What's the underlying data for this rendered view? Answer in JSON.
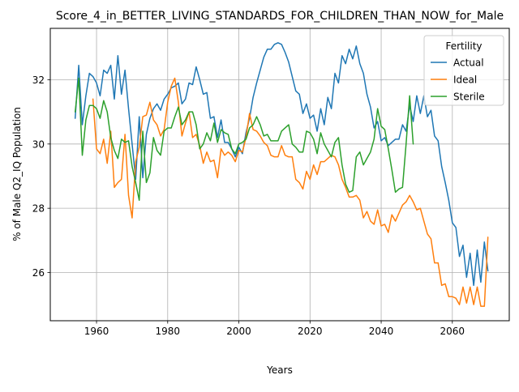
{
  "chart_data": {
    "type": "line",
    "title": "Score_4_in_BETTER_LIVING_STANDARDS_FOR_CHILDREN_THAN_NOW_for_Male",
    "xlabel": "Years",
    "ylabel": "% of Male Q2_IQ Population",
    "xlim": [
      1947,
      2076
    ],
    "ylim": [
      24.5,
      33.6
    ],
    "xticks": [
      1960,
      1980,
      2000,
      2020,
      2040,
      2060
    ],
    "yticks": [
      26,
      28,
      30,
      32
    ],
    "grid": true,
    "legend": {
      "title": "Fertility",
      "position": "top-right"
    },
    "series": [
      {
        "name": "Actual",
        "color": "#1f77b4",
        "x": [
          1954,
          1955,
          1956,
          1957,
          1958,
          1959,
          1960,
          1961,
          1962,
          1963,
          1964,
          1965,
          1966,
          1967,
          1968,
          1969,
          1970,
          1971,
          1972,
          1973,
          1974,
          1975,
          1976,
          1977,
          1978,
          1979,
          1980,
          1981,
          1982,
          1983,
          1984,
          1985,
          1986,
          1987,
          1988,
          1989,
          1990,
          1991,
          1992,
          1993,
          1994,
          1995,
          1996,
          1997,
          1998,
          1999,
          2000,
          2001,
          2002,
          2003,
          2004,
          2005,
          2006,
          2007,
          2008,
          2009,
          2010,
          2011,
          2012,
          2013,
          2014,
          2015,
          2016,
          2017,
          2018,
          2019,
          2020,
          2021,
          2022,
          2023,
          2024,
          2025,
          2026,
          2027,
          2028,
          2029,
          2030,
          2031,
          2032,
          2033,
          2034,
          2035,
          2036,
          2037,
          2038,
          2039,
          2040,
          2041,
          2042,
          2043,
          2044,
          2045,
          2046,
          2047,
          2048,
          2049,
          2050,
          2051,
          2052,
          2053,
          2054,
          2055,
          2056,
          2057,
          2058,
          2059,
          2060,
          2061,
          2062,
          2063,
          2064,
          2065,
          2066,
          2067,
          2068,
          2069,
          2070
        ],
        "values": [
          30.8,
          32.45,
          30.6,
          31.5,
          32.2,
          32.1,
          31.9,
          31.5,
          32.3,
          32.2,
          32.45,
          31.4,
          32.75,
          31.55,
          32.3,
          31.1,
          30.0,
          28.9,
          30.85,
          28.95,
          30.3,
          30.8,
          31.1,
          31.25,
          31.05,
          31.4,
          31.55,
          31.75,
          31.8,
          31.9,
          31.25,
          31.4,
          31.9,
          31.85,
          32.4,
          32.0,
          31.55,
          31.6,
          30.8,
          30.85,
          30.2,
          30.75,
          30.05,
          30.05,
          29.85,
          29.6,
          29.9,
          29.7,
          30.35,
          30.8,
          31.45,
          31.9,
          32.3,
          32.7,
          32.95,
          32.95,
          33.1,
          33.15,
          33.1,
          32.85,
          32.55,
          32.1,
          31.65,
          31.55,
          30.95,
          31.25,
          30.8,
          30.9,
          30.4,
          31.1,
          30.6,
          31.45,
          31.1,
          32.2,
          31.9,
          32.75,
          32.5,
          32.95,
          32.65,
          33.05,
          32.5,
          32.2,
          31.55,
          31.15,
          30.5,
          30.7,
          30.1,
          30.2,
          29.95,
          30.05,
          30.15,
          30.15,
          30.6,
          30.4,
          31.2,
          30.7,
          31.5,
          30.95,
          31.5,
          30.85,
          31.05,
          30.25,
          30.1,
          29.3,
          28.8,
          28.25,
          27.55,
          27.4,
          26.5,
          26.85,
          25.85,
          26.6,
          25.6,
          26.7,
          25.7,
          26.95,
          26.05
        ]
      },
      {
        "name": "Ideal",
        "color": "#ff7f0e",
        "x": [
          1959,
          1960,
          1961,
          1962,
          1963,
          1964,
          1965,
          1966,
          1967,
          1968,
          1969,
          1970,
          1971,
          1972,
          1973,
          1974,
          1975,
          1976,
          1977,
          1978,
          1979,
          1980,
          1981,
          1982,
          1983,
          1984,
          1985,
          1986,
          1987,
          1988,
          1989,
          1990,
          1991,
          1992,
          1993,
          1994,
          1995,
          1996,
          1997,
          1998,
          1999,
          2000,
          2001,
          2002,
          2003,
          2004,
          2005,
          2006,
          2007,
          2008,
          2009,
          2010,
          2011,
          2012,
          2013,
          2014,
          2015,
          2016,
          2017,
          2018,
          2019,
          2020,
          2021,
          2022,
          2023,
          2024,
          2025,
          2026,
          2027,
          2028,
          2029,
          2030,
          2031,
          2032,
          2033,
          2034,
          2035,
          2036,
          2037,
          2038,
          2039,
          2040,
          2041,
          2042,
          2043,
          2044,
          2045,
          2046,
          2047,
          2048,
          2049,
          2050,
          2051,
          2052,
          2053,
          2054,
          2055,
          2056,
          2057,
          2058,
          2059,
          2060,
          2061,
          2062,
          2063,
          2064,
          2065,
          2066,
          2067,
          2068,
          2069,
          2070
        ],
        "values": [
          31.4,
          29.85,
          29.7,
          30.15,
          29.4,
          30.4,
          28.65,
          28.8,
          28.9,
          30.3,
          28.4,
          27.7,
          29.45,
          29.9,
          30.85,
          30.9,
          31.3,
          30.75,
          30.6,
          30.25,
          30.45,
          31.3,
          31.8,
          32.05,
          31.3,
          30.25,
          30.65,
          31.0,
          30.2,
          30.3,
          29.95,
          29.4,
          29.75,
          29.45,
          29.5,
          28.95,
          29.85,
          29.65,
          29.75,
          29.65,
          29.45,
          29.8,
          29.75,
          30.2,
          30.95,
          30.45,
          30.4,
          30.25,
          30.05,
          29.95,
          29.65,
          29.6,
          29.6,
          29.95,
          29.65,
          29.6,
          29.6,
          28.9,
          28.8,
          28.6,
          29.15,
          28.9,
          29.35,
          29.05,
          29.45,
          29.45,
          29.55,
          29.65,
          29.6,
          29.35,
          28.9,
          28.65,
          28.35,
          28.35,
          28.4,
          28.25,
          27.7,
          27.9,
          27.6,
          27.5,
          27.95,
          27.45,
          27.5,
          27.25,
          27.8,
          27.6,
          27.85,
          28.1,
          28.2,
          28.4,
          28.2,
          27.95,
          28.0,
          27.6,
          27.2,
          27.05,
          26.3,
          26.3,
          25.6,
          25.65,
          25.25,
          25.25,
          25.2,
          25.0,
          25.55,
          25.05,
          25.55,
          25.0,
          25.55,
          24.95,
          24.95,
          27.1
        ]
      },
      {
        "name": "Sterile",
        "color": "#2ca02c",
        "x": [
          1954,
          1955,
          1956,
          1957,
          1958,
          1959,
          1960,
          1961,
          1962,
          1963,
          1964,
          1965,
          1966,
          1967,
          1968,
          1969,
          1970,
          1971,
          1972,
          1973,
          1974,
          1975,
          1976,
          1977,
          1978,
          1979,
          1980,
          1981,
          1982,
          1983,
          1984,
          1985,
          1986,
          1987,
          1988,
          1989,
          1990,
          1991,
          1992,
          1993,
          1994,
          1995,
          1996,
          1997,
          1998,
          1999,
          2000,
          2001,
          2002,
          2003,
          2004,
          2005,
          2006,
          2007,
          2008,
          2009,
          2010,
          2011,
          2012,
          2013,
          2014,
          2015,
          2016,
          2017,
          2018,
          2019,
          2020,
          2021,
          2022,
          2023,
          2024,
          2025,
          2026,
          2027,
          2028,
          2029,
          2030,
          2031,
          2032,
          2033,
          2034,
          2035,
          2036,
          2037,
          2038,
          2039,
          2040,
          2041,
          2042,
          2043,
          2044,
          2045,
          2046,
          2047,
          2048,
          2049
        ],
        "values": [
          31.0,
          32.05,
          29.65,
          30.75,
          31.2,
          31.2,
          31.1,
          30.8,
          31.35,
          31.0,
          30.2,
          29.8,
          29.55,
          30.15,
          30.05,
          30.1,
          29.3,
          28.8,
          28.25,
          30.4,
          28.8,
          29.1,
          30.2,
          29.8,
          29.65,
          30.4,
          30.5,
          30.5,
          30.85,
          31.15,
          30.6,
          30.75,
          31.0,
          31.0,
          30.6,
          29.85,
          30.0,
          30.35,
          30.1,
          30.65,
          30.05,
          30.45,
          30.35,
          30.3,
          29.85,
          29.7,
          30.0,
          30.05,
          30.15,
          30.5,
          30.6,
          30.85,
          30.6,
          30.25,
          30.3,
          30.1,
          30.1,
          30.1,
          30.4,
          30.5,
          30.6,
          30.0,
          29.9,
          29.75,
          29.75,
          30.4,
          30.35,
          30.15,
          29.7,
          30.35,
          30.0,
          29.8,
          29.6,
          30.05,
          30.2,
          29.35,
          28.75,
          28.5,
          28.55,
          29.6,
          29.75,
          29.35,
          29.55,
          29.75,
          30.15,
          31.1,
          30.55,
          30.45,
          29.85,
          29.2,
          28.5,
          28.6,
          28.65,
          30.0,
          31.5,
          30.0
        ]
      }
    ]
  }
}
